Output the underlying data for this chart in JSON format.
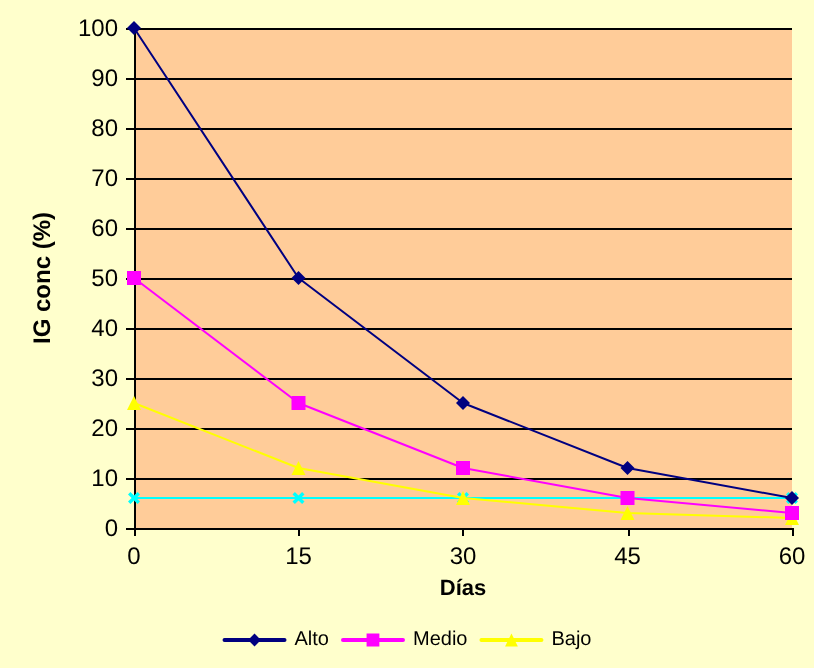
{
  "chart_data": {
    "type": "line",
    "xlabel": "Días",
    "ylabel": "IG conc (%)",
    "x": [
      0,
      15,
      30,
      45,
      60
    ],
    "xlim": [
      0,
      60
    ],
    "xticks": [
      0,
      15,
      30,
      45,
      60
    ],
    "ylim": [
      0,
      100
    ],
    "yticks": [
      0,
      10,
      20,
      30,
      40,
      50,
      60,
      70,
      80,
      90,
      100
    ],
    "grid": "y",
    "legend": "bottom",
    "series": [
      {
        "name": "Alto",
        "color": "#000080",
        "marker": "diamond",
        "values": [
          100,
          50,
          25,
          12,
          6
        ]
      },
      {
        "name": "Medio",
        "color": "#ff00ff",
        "marker": "square",
        "values": [
          50,
          25,
          12,
          6,
          3
        ]
      },
      {
        "name": "Bajo",
        "color": "#ffff00",
        "marker": "triangle",
        "values": [
          25,
          12,
          6,
          3,
          2
        ]
      },
      {
        "color": "#00ffff",
        "marker": "cross",
        "values": [
          6,
          6,
          6,
          6,
          6
        ]
      }
    ]
  }
}
